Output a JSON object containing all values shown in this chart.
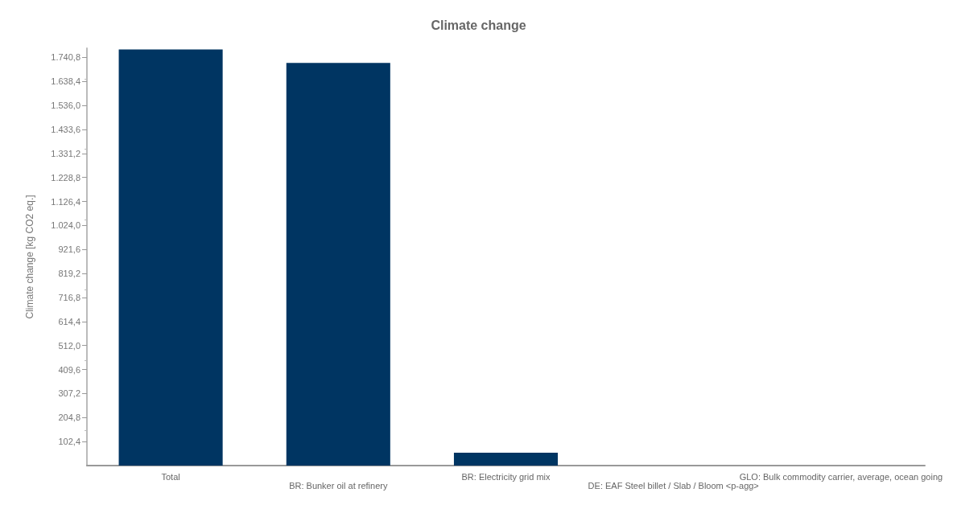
{
  "chart_data": {
    "type": "bar",
    "title": "Climate change",
    "ylabel": "Climate change [kg CO2 eq.]",
    "categories": [
      "Total",
      "BR: Bunker oil at refinery",
      "BR: Electricity grid mix",
      "DE: EAF Steel billet / Slab / Bloom <p-agg>",
      "GLO: Bulk commodity carrier, average, ocean going"
    ],
    "values": [
      1775,
      1717,
      55,
      0,
      0
    ],
    "color": "#003562",
    "ylim": [
      0,
      1780
    ],
    "yticks": [
      {
        "value": 102.4,
        "label": "102,4"
      },
      {
        "value": 204.8,
        "label": "204,8"
      },
      {
        "value": 307.2,
        "label": "307,2"
      },
      {
        "value": 409.6,
        "label": "409,6"
      },
      {
        "value": 512,
        "label": "512,0"
      },
      {
        "value": 614.4,
        "label": "614,4"
      },
      {
        "value": 716.8,
        "label": "716,8"
      },
      {
        "value": 819.2,
        "label": "819,2"
      },
      {
        "value": 921.6,
        "label": "921,6"
      },
      {
        "value": 1024,
        "label": "1.024,0"
      },
      {
        "value": 1126.4,
        "label": "1.126,4"
      },
      {
        "value": 1228.8,
        "label": "1.228,8"
      },
      {
        "value": 1331.2,
        "label": "1.331,2"
      },
      {
        "value": 1433.6,
        "label": "1.433,6"
      },
      {
        "value": 1536,
        "label": "1.536,0"
      },
      {
        "value": 1638.4,
        "label": "1.638,4"
      },
      {
        "value": 1740.8,
        "label": "1.740,8"
      }
    ],
    "grid": false
  }
}
